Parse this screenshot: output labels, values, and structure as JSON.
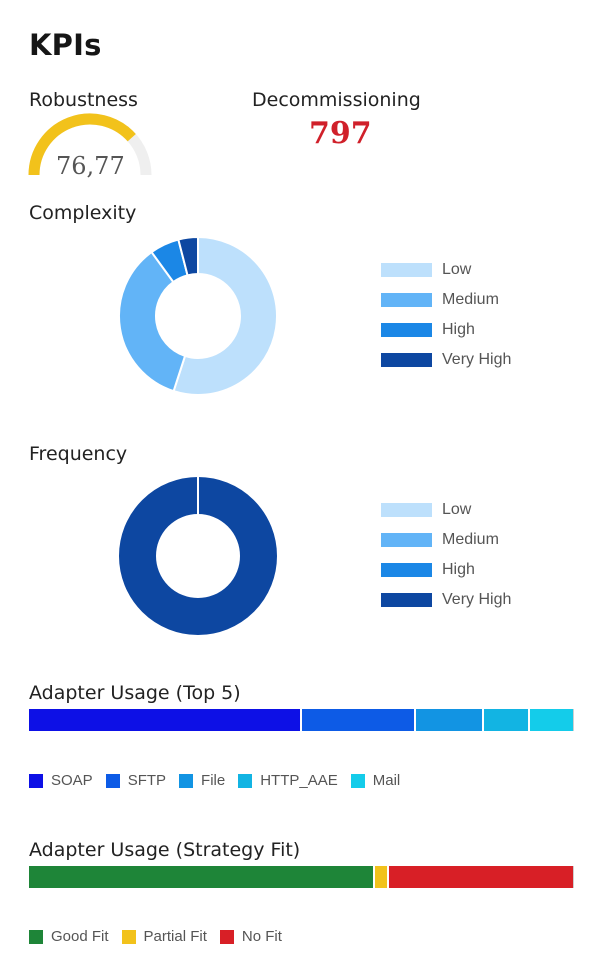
{
  "title": "KPIs",
  "robustness": {
    "label": "Robustness",
    "value": "76,77",
    "fraction": 0.7677,
    "color": "#f2c21b",
    "track_color": "#efefef"
  },
  "decommissioning": {
    "label": "Decommissioning",
    "value": "797",
    "color": "#d0202a"
  },
  "complexity": {
    "label": "Complexity",
    "chart_data": {
      "type": "pie",
      "title": "Complexity",
      "categories": [
        "Low",
        "Medium",
        "High",
        "Very High"
      ],
      "values": [
        55,
        35,
        6,
        4
      ],
      "colors": [
        "#bde0fc",
        "#62b4f7",
        "#1b87e6",
        "#0d47a1"
      ],
      "legend": "right"
    }
  },
  "frequency": {
    "label": "Frequency",
    "chart_data": {
      "type": "pie",
      "title": "Frequency",
      "categories": [
        "Low",
        "Medium",
        "High",
        "Very High"
      ],
      "values": [
        0,
        0,
        0,
        100
      ],
      "colors": [
        "#bde0fc",
        "#62b4f7",
        "#1b87e6",
        "#0d47a1"
      ],
      "legend": "right"
    }
  },
  "adapter_top5": {
    "label": "Adapter Usage (Top 5)",
    "chart_data": {
      "type": "bar",
      "orientation": "stacked-horizontal",
      "title": "Adapter Usage (Top 5)",
      "categories": [
        "SOAP",
        "SFTP",
        "File",
        "HTTP_AAE",
        "Mail"
      ],
      "values": [
        50,
        21,
        12.5,
        8.5,
        8
      ],
      "colors": [
        "#0d10e6",
        "#0d5be6",
        "#1294e3",
        "#12b4e3",
        "#14ccea"
      ],
      "legend": "bottom"
    }
  },
  "adapter_strategy": {
    "label": "Adapter Usage (Strategy Fit)",
    "chart_data": {
      "type": "bar",
      "orientation": "stacked-horizontal",
      "title": "Adapter Usage (Strategy Fit)",
      "categories": [
        "Good Fit",
        "Partial Fit",
        "No Fit"
      ],
      "values": [
        63.5,
        2.5,
        34
      ],
      "colors": [
        "#1e8538",
        "#f2c21b",
        "#d81f26"
      ],
      "legend": "bottom"
    }
  }
}
